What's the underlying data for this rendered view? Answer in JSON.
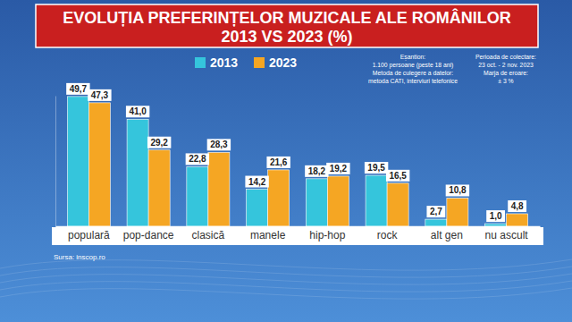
{
  "chart_data": {
    "type": "bar",
    "title": "EVOLUȚIA PREFERINȚELOR MUZICALE ALE ROMÂNILOR",
    "subtitle": "2013 VS 2023 (%)",
    "categories": [
      "populară",
      "pop-dance",
      "clasică",
      "manele",
      "hip-hop",
      "rock",
      "alt gen",
      "nu ascult"
    ],
    "series": [
      {
        "name": "2013",
        "color": "#35c5dc",
        "values": [
          49.7,
          41.0,
          22.8,
          14.2,
          18.2,
          19.5,
          2.7,
          1.0
        ],
        "value_labels": [
          "49,7",
          "41,0",
          "22,8",
          "14,2",
          "18,2",
          "19,5",
          "2,7",
          "1,0"
        ]
      },
      {
        "name": "2023",
        "color": "#f5a623",
        "values": [
          47.3,
          29.2,
          28.3,
          21.6,
          19.2,
          16.5,
          10.8,
          4.8
        ],
        "value_labels": [
          "47,3",
          "29,2",
          "28,3",
          "21,6",
          "19,2",
          "16,5",
          "10,8",
          "4,8"
        ]
      }
    ],
    "ylim": [
      0,
      50
    ],
    "yticks": [
      0
    ],
    "tick_labels": "x",
    "data_labels": true,
    "legend": "top",
    "annotations": [
      [
        "Eșantion:",
        "1.100 persoane (peste 18 ani)",
        "Metoda de culegere a datelor:",
        "metoda CATI, interviuri telefonice"
      ],
      [
        "Perioada de colectare:",
        "23 oct. - 2 nov. 2023",
        "Marja de eroare:",
        "± 3 %"
      ]
    ],
    "source": "Sursa: inscop.ro"
  }
}
